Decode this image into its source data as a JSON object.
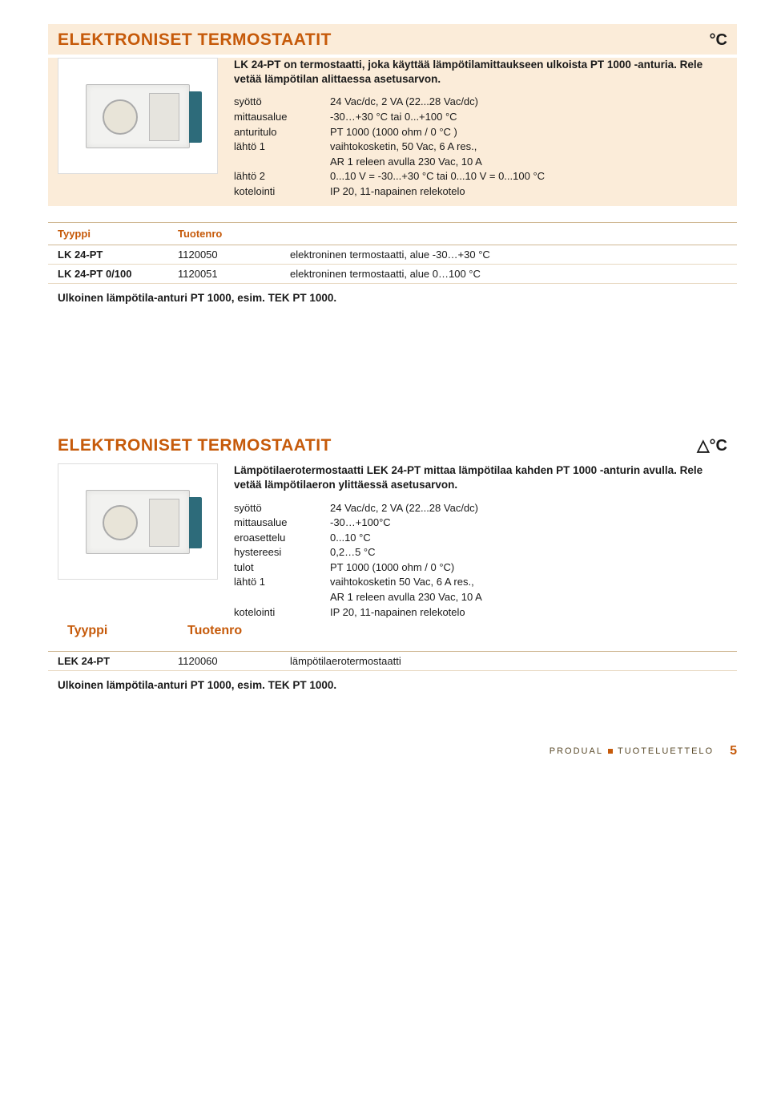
{
  "colors": {
    "accent": "#c65a0a",
    "cream": "#fbecd9",
    "rule": "#d0b894",
    "text": "#1a1a1a"
  },
  "section1": {
    "title": "ELEKTRONISET TERMOSTAATIT",
    "unit": "°C",
    "intro": "LK 24-PT on termostaatti, joka käyttää lämpötilamittaukseen ulkoista PT 1000 -anturia. Rele vetää lämpötilan alittaessa asetusarvon.",
    "specs": [
      {
        "k": "syöttö",
        "v": "24 Vac/dc, 2 VA (22...28 Vac/dc)"
      },
      {
        "k": "mittausalue",
        "v": "-30…+30 °C tai 0...+100 °C"
      },
      {
        "k": "anturitulo",
        "v": "PT 1000 (1000 ohm / 0 °C )"
      },
      {
        "k": "lähtö 1",
        "v": "vaihtokosketin, 50 Vac, 6 A res.,"
      },
      {
        "k": "",
        "v": "AR 1 releen avulla 230 Vac, 10 A"
      },
      {
        "k": "lähtö 2",
        "v": "0...10 V = -30...+30 °C tai 0...10 V = 0...100 °C"
      },
      {
        "k": "kotelointi",
        "v": "IP 20, 11-napainen relekotelo"
      }
    ],
    "table": {
      "headers": [
        "Tyyppi",
        "Tuotenro",
        ""
      ],
      "rows": [
        [
          "LK 24-PT",
          "1120050",
          "elektroninen termostaatti, alue -30…+30 °C"
        ],
        [
          "LK 24-PT 0/100",
          "1120051",
          "elektroninen termostaatti, alue 0…100 °C"
        ]
      ]
    },
    "note": "Ulkoinen lämpötila-anturi PT 1000, esim. TEK PT 1000."
  },
  "section2": {
    "title": "ELEKTRONISET TERMOSTAATIT",
    "unit": "△°C",
    "intro": "Lämpötilaerotermostaatti LEK 24-PT mittaa lämpötilaa kahden PT 1000 -anturin avulla. Rele vetää lämpötilaeron ylittäessä asetusarvon.",
    "specs": [
      {
        "k": "syöttö",
        "v": "24 Vac/dc, 2 VA (22...28 Vac/dc)"
      },
      {
        "k": "mittausalue",
        "v": "-30…+100°C"
      },
      {
        "k": "eroasettelu",
        "v": "0...10 °C"
      },
      {
        "k": "hystereesi",
        "v": "0,2…5 °C"
      },
      {
        "k": "tulot",
        "v": "PT 1000 (1000 ohm / 0 °C)"
      },
      {
        "k": "lähtö 1",
        "v": "vaihtokosketin 50 Vac, 6 A res.,"
      },
      {
        "k": "",
        "v": "AR 1 releen avulla 230 Vac, 10 A"
      },
      {
        "k": "kotelointi",
        "v": "IP 20, 11-napainen relekotelo"
      }
    ],
    "table": {
      "headers": [
        "Tyyppi",
        "Tuotenro",
        ""
      ],
      "rows": [
        [
          "LEK 24-PT",
          "1120060",
          "lämpötilaerotermostaatti"
        ]
      ]
    },
    "note": "Ulkoinen lämpötila-anturi PT 1000, esim. TEK PT 1000."
  },
  "footer": {
    "brand": "PRODUAL",
    "title": "TUOTELUETTELO",
    "page": "5"
  }
}
